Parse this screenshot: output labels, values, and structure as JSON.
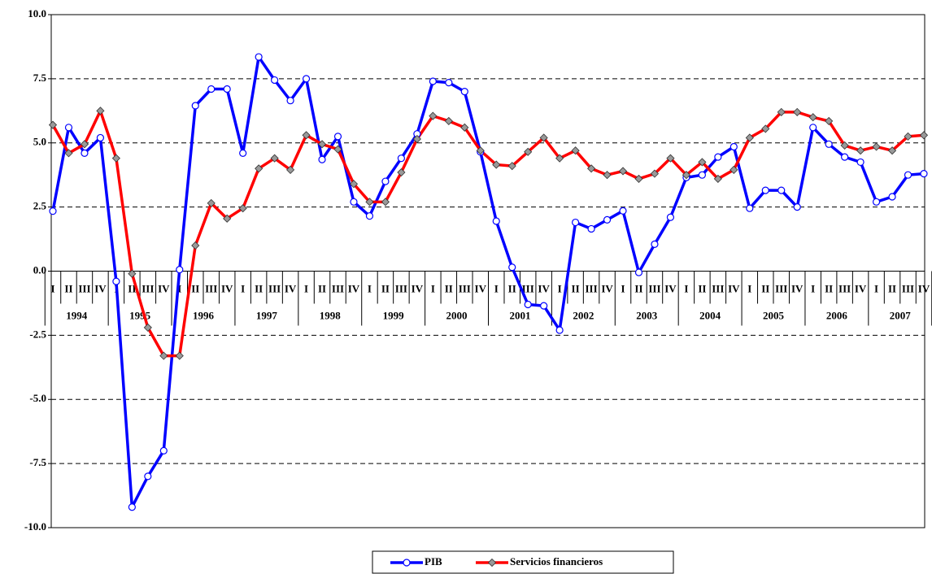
{
  "chart_data": {
    "type": "line",
    "categories": [
      "I",
      "II",
      "III",
      "IV",
      "I",
      "II",
      "III",
      "IV",
      "I",
      "II",
      "III",
      "IV",
      "I",
      "II",
      "III",
      "IV",
      "I",
      "II",
      "III",
      "IV",
      "I",
      "II",
      "III",
      "IV",
      "I",
      "II",
      "III",
      "IV",
      "I",
      "II",
      "III",
      "IV",
      "I",
      "II",
      "III",
      "IV",
      "I",
      "II",
      "III",
      "IV",
      "I",
      "II",
      "III",
      "IV",
      "I",
      "II",
      "III",
      "IV",
      "I",
      "II",
      "III",
      "IV",
      "I",
      "II",
      "III",
      "IV"
    ],
    "years": [
      "1994",
      "1995",
      "1996",
      "1997",
      "1998",
      "1999",
      "2000",
      "2001",
      "2002",
      "2003",
      "2004",
      "2005",
      "2006",
      "2007"
    ],
    "series": [
      {
        "name": "PIB",
        "color": "#0000ff",
        "marker": "circle",
        "values": [
          2.34,
          5.6,
          4.6,
          5.2,
          -0.4,
          -9.2,
          -8.0,
          -7.0,
          0.06,
          6.45,
          7.1,
          7.1,
          4.6,
          8.35,
          7.45,
          6.65,
          7.5,
          4.35,
          5.25,
          2.7,
          2.15,
          3.5,
          4.4,
          5.35,
          7.4,
          7.35,
          7.0,
          4.65,
          1.95,
          0.15,
          -1.3,
          -1.35,
          -2.3,
          1.9,
          1.65,
          2.0,
          2.35,
          -0.05,
          1.05,
          2.1,
          3.65,
          3.75,
          4.45,
          4.85,
          2.45,
          3.15,
          3.15,
          2.5,
          5.6,
          4.95,
          4.45,
          4.25,
          2.7,
          2.9,
          3.75,
          3.8
        ]
      },
      {
        "name": "Servicios financieros",
        "color": "#ff0000",
        "marker": "diamond",
        "values": [
          5.7,
          4.6,
          4.95,
          6.25,
          4.4,
          -0.1,
          -2.2,
          -3.3,
          -3.3,
          1.0,
          2.65,
          2.05,
          2.45,
          4.0,
          4.4,
          3.95,
          5.3,
          4.95,
          4.75,
          3.4,
          2.7,
          2.7,
          3.85,
          5.15,
          6.05,
          5.85,
          5.6,
          4.7,
          4.15,
          4.1,
          4.65,
          5.2,
          4.4,
          4.7,
          4.0,
          3.75,
          3.9,
          3.6,
          3.8,
          4.4,
          3.75,
          4.25,
          3.6,
          3.95,
          5.2,
          5.55,
          6.2,
          6.2,
          6.0,
          5.85,
          4.9,
          4.7,
          4.85,
          4.7,
          5.25,
          5.3
        ]
      }
    ],
    "ylim": [
      -10,
      10
    ],
    "yticks": [
      {
        "value": -10,
        "label": "-10.0"
      },
      -7.5,
      {
        "value": -5,
        "label": "-5.0"
      },
      -2.5,
      {
        "value": 0,
        "label": "0.0"
      },
      2.5,
      {
        "value": 5,
        "label": "5.0"
      },
      7.5,
      {
        "value": 10,
        "label": "10.0"
      }
    ],
    "grid": true
  }
}
